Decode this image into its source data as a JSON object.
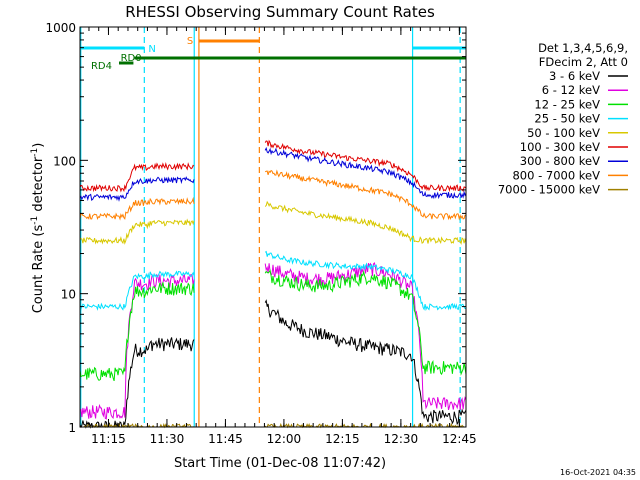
{
  "chart_data": {
    "type": "line",
    "title": "RHESSI Observing Summary Count Rates",
    "xlabel": "Start Time (01-Dec-08 11:07:42)",
    "ylabel": "Count Rate (s^-1 detector^-1)",
    "ylabel_parts": {
      "prefix": "Count Rate (s",
      "sup1": "-1",
      "mid": " detector",
      "sup2": "-1",
      "suffix": ")"
    },
    "yscale": "log",
    "ylim": [
      1,
      1000
    ],
    "xlim_minutes": [
      0,
      99
    ],
    "x_ticks": [
      {
        "label": "11:15",
        "minute": 7.3
      },
      {
        "label": "11:30",
        "minute": 22.3
      },
      {
        "label": "11:45",
        "minute": 37.3
      },
      {
        "label": "12:00",
        "minute": 52.3
      },
      {
        "label": "12:15",
        "minute": 67.3
      },
      {
        "label": "12:30",
        "minute": 82.3
      },
      {
        "label": "12:45",
        "minute": 97.3
      }
    ],
    "y_ticks": [
      {
        "label": "1",
        "value": 1
      },
      {
        "label": "10",
        "value": 10
      },
      {
        "label": "100",
        "value": 100
      },
      {
        "label": "1000",
        "value": 1000
      }
    ],
    "legend": {
      "placement": "right",
      "header": [
        "Det 1,3,4,5,6,9,",
        "FDecim 2, Att 0"
      ]
    },
    "series": [
      {
        "name": "3 - 6 keV",
        "color": "#000000",
        "night": 1,
        "pre": 3.8,
        "mid": 4.2,
        "post": [
          8,
          6,
          5.2,
          4.8,
          4.3,
          4,
          3.8,
          3.5
        ]
      },
      {
        "name": "6 - 12 keV",
        "color": "#e000e0",
        "night": 1.3,
        "pre": 12,
        "mid": 12.5,
        "post": [
          16,
          14,
          13,
          13,
          14,
          15.5,
          14,
          11
        ]
      },
      {
        "name": "12 - 25 keV",
        "color": "#00e000",
        "night": 2.5,
        "pre": 10.5,
        "mid": 11,
        "post": [
          14,
          12.5,
          11.5,
          11.5,
          12.5,
          13.5,
          12,
          9.5
        ]
      },
      {
        "name": "25 - 50 keV",
        "color": "#00e0ff",
        "night": 8,
        "pre": 13.5,
        "mid": 14,
        "post": [
          20,
          18,
          17,
          16.5,
          16,
          16,
          15,
          13.5
        ]
      },
      {
        "name": "50 - 100 keV",
        "color": "#d8c800",
        "night": 25,
        "pre": 33,
        "mid": 34,
        "post": [
          47,
          43,
          40,
          38,
          36,
          34,
          31,
          26
        ]
      },
      {
        "name": "100 - 300 keV",
        "color": "#e00000",
        "night": 62,
        "pre": 88,
        "mid": 90,
        "post": [
          135,
          125,
          116,
          110,
          104,
          99,
          94,
          78
        ]
      },
      {
        "name": "300 - 800 keV",
        "color": "#0000d8",
        "night": 53,
        "pre": 70,
        "mid": 71,
        "post": [
          120,
          112,
          104,
          98,
          92,
          87,
          81,
          68
        ]
      },
      {
        "name": "800 - 7000 keV",
        "color": "#ff8000",
        "night": 38,
        "pre": 48,
        "mid": 49,
        "post": [
          82,
          77,
          72,
          68,
          64,
          60,
          56,
          47
        ]
      },
      {
        "name": "7000 - 15000 keV",
        "color": "#a08000",
        "night": 1,
        "pre": 1,
        "mid": 1,
        "post": [
          1,
          1,
          1,
          1,
          1,
          1,
          1,
          1
        ]
      }
    ],
    "post_end_values": {
      "3 - 6 keV": 1.2,
      "6 - 12 keV": 1.5,
      "12 - 25 keV": 2.8,
      "25 - 50 keV": 8,
      "50 - 100 keV": 25,
      "100 - 300 keV": 62,
      "300 - 800 keV": 55,
      "800 - 7000 keV": 38,
      "7000 - 15000 keV": 1
    },
    "flag_bars": [
      {
        "label": "N",
        "color": "#00e0ff",
        "segments": [
          [
            0,
            16.5
          ],
          [
            85.3,
            99
          ]
        ],
        "level": 0.0
      },
      {
        "label": "S",
        "color": "#ff8000",
        "segments": [
          [
            30.5,
            46
          ]
        ],
        "level": 0.0
      },
      {
        "label": "RD0",
        "color": "#007000",
        "segments": [
          [
            14,
            99
          ]
        ],
        "level": 1
      },
      {
        "label": "RD4",
        "color": "#007000",
        "segments": [
          [
            10,
            13.7
          ]
        ],
        "level": 2
      }
    ],
    "vertical_lines": [
      {
        "minute": 0.2,
        "color": "#00e0ff",
        "style": "solid"
      },
      {
        "minute": 16.5,
        "color": "#00e0ff",
        "style": "dashed"
      },
      {
        "minute": 29.3,
        "color": "#00e0ff",
        "style": "solid"
      },
      {
        "minute": 30.5,
        "color": "#ff8000",
        "style": "solid"
      },
      {
        "minute": 46,
        "color": "#ff8000",
        "style": "dashed"
      },
      {
        "minute": 85.3,
        "color": "#00e0ff",
        "style": "solid"
      },
      {
        "minute": 97.5,
        "color": "#00e0ff",
        "style": "dashed"
      }
    ],
    "gap": [
      29.3,
      47.5
    ],
    "timestamp": "16-Oct-2021 04:35"
  }
}
